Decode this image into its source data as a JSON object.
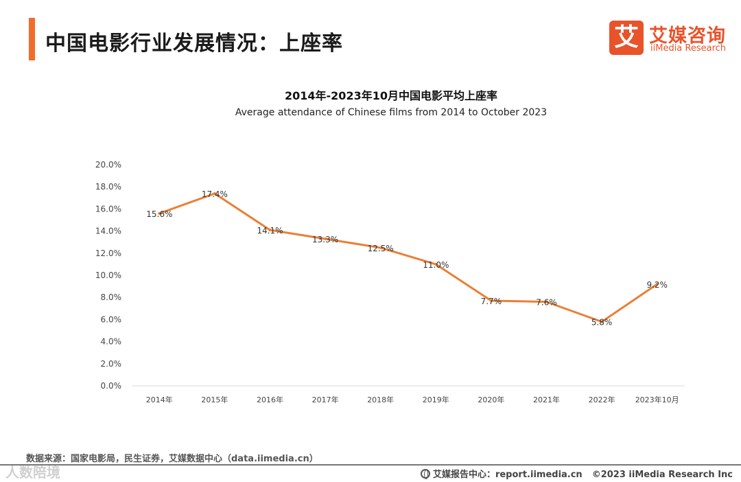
{
  "header": {
    "title": "中国电影行业发展情况：上座率"
  },
  "logo": {
    "mark": "艾",
    "cn": "艾媒咨询",
    "en": "iiMedia Research"
  },
  "footer": {
    "source": "数据来源：国家电影局，民生证券，艾媒数据中心（data.iimedia.cn）",
    "report_center": "艾媒报告中心：report.iimedia.cn",
    "copyright": "©2023  iiMedia Research  Inc",
    "watermark": "人数陪境"
  },
  "colors": {
    "accent": "#f26b2a",
    "line": "#ea7f35"
  },
  "chart_data": {
    "type": "line",
    "title": "2014年-2023年10月中国电影平均上座率",
    "subtitle": "Average attendance of Chinese films from 2014 to October 2023",
    "categories": [
      "2014年",
      "2015年",
      "2016年",
      "2017年",
      "2018年",
      "2019年",
      "2020年",
      "2021年",
      "2022年",
      "2023年10月"
    ],
    "series": [
      {
        "values": [
          15.6,
          17.4,
          14.1,
          13.3,
          12.5,
          11.0,
          7.7,
          7.6,
          5.8,
          9.2
        ]
      }
    ],
    "data_labels": [
      "15.6%",
      "17.4%",
      "14.1%",
      "13.3%",
      "12.5%",
      "11.0%",
      "7.7%",
      "7.6%",
      "5.8%",
      "9.2%"
    ],
    "y_ticks": [
      "0.0%",
      "2.0%",
      "4.0%",
      "6.0%",
      "8.0%",
      "10.0%",
      "12.0%",
      "14.0%",
      "16.0%",
      "18.0%",
      "20.0%"
    ],
    "ylim": [
      0,
      20
    ],
    "xlabel": "",
    "ylabel": "",
    "grid": false,
    "legend": "none"
  }
}
